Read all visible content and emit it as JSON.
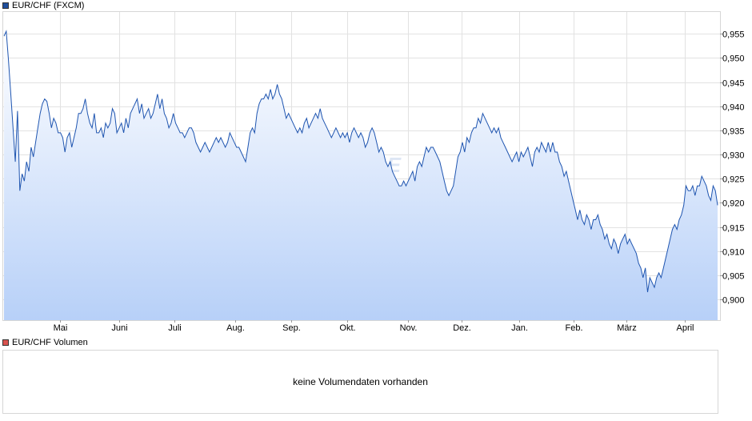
{
  "legend": {
    "price_label": "EUR/CHF (FXCM)",
    "price_color": "#1f4e9c",
    "volume_label": "EUR/CHF Volumen",
    "volume_color": "#d9534f"
  },
  "watermark": "ARIVA.DE",
  "volume_panel": {
    "message": "keine Volumendaten vorhanden"
  },
  "chart_data": {
    "type": "area",
    "title": "",
    "xlabel": "",
    "ylabel": "",
    "y_axis_position": "right",
    "grid": true,
    "ylim": [
      0.8957,
      0.9595
    ],
    "y_ticks": [
      "0,955",
      "0,950",
      "0,945",
      "0,940",
      "0,935",
      "0,930",
      "0,925",
      "0,920",
      "0,915",
      "0,910",
      "0,905",
      "0,900"
    ],
    "y_tick_values": [
      0.955,
      0.95,
      0.945,
      0.94,
      0.935,
      0.93,
      0.925,
      0.92,
      0.915,
      0.91,
      0.905,
      0.9
    ],
    "x_ticks": [
      "Mai",
      "Juni",
      "Juli",
      "Aug.",
      "Sep.",
      "Okt.",
      "Nov.",
      "Dez.",
      "Jan.",
      "Feb.",
      "März",
      "April"
    ],
    "series": [
      {
        "values": [
          0.9545,
          0.9555,
          0.9495,
          0.9425,
          0.9355,
          0.9285,
          0.939,
          0.9225,
          0.926,
          0.9245,
          0.9285,
          0.9265,
          0.9315,
          0.9295,
          0.9325,
          0.9355,
          0.9385,
          0.9405,
          0.9415,
          0.941,
          0.9385,
          0.9355,
          0.9375,
          0.9365,
          0.9345,
          0.9345,
          0.9335,
          0.9305,
          0.9335,
          0.9345,
          0.9315,
          0.9335,
          0.9355,
          0.9385,
          0.9385,
          0.9395,
          0.9415,
          0.9385,
          0.9365,
          0.9355,
          0.9385,
          0.9345,
          0.9345,
          0.9355,
          0.9335,
          0.9365,
          0.9355,
          0.9365,
          0.9395,
          0.9385,
          0.9345,
          0.9355,
          0.9365,
          0.9345,
          0.9375,
          0.9355,
          0.9385,
          0.9395,
          0.9405,
          0.9415,
          0.9385,
          0.9405,
          0.9375,
          0.9385,
          0.9395,
          0.9375,
          0.9385,
          0.9405,
          0.9425,
          0.9395,
          0.9415,
          0.9385,
          0.9375,
          0.9355,
          0.9365,
          0.9385,
          0.9365,
          0.9355,
          0.9345,
          0.9345,
          0.9335,
          0.9345,
          0.9355,
          0.9355,
          0.9345,
          0.9325,
          0.9315,
          0.9305,
          0.9315,
          0.9325,
          0.9315,
          0.9305,
          0.9315,
          0.9325,
          0.9335,
          0.9325,
          0.9335,
          0.9325,
          0.9315,
          0.9325,
          0.9345,
          0.9335,
          0.9325,
          0.9315,
          0.9315,
          0.9305,
          0.9295,
          0.9285,
          0.9315,
          0.9345,
          0.9355,
          0.9345,
          0.9385,
          0.9405,
          0.9415,
          0.9415,
          0.9425,
          0.9415,
          0.9435,
          0.9415,
          0.9425,
          0.9445,
          0.9425,
          0.9415,
          0.9395,
          0.9375,
          0.9385,
          0.9375,
          0.9365,
          0.9355,
          0.9345,
          0.9355,
          0.9345,
          0.9365,
          0.9375,
          0.9355,
          0.9365,
          0.9375,
          0.9385,
          0.9375,
          0.9395,
          0.9375,
          0.9365,
          0.9355,
          0.9345,
          0.9335,
          0.9345,
          0.9355,
          0.9345,
          0.9335,
          0.9345,
          0.9335,
          0.9345,
          0.9325,
          0.9345,
          0.9355,
          0.9345,
          0.9335,
          0.9345,
          0.9335,
          0.9315,
          0.9325,
          0.9345,
          0.9355,
          0.9345,
          0.9325,
          0.9305,
          0.9315,
          0.9305,
          0.9285,
          0.9275,
          0.9285,
          0.9265,
          0.9255,
          0.9245,
          0.9235,
          0.9235,
          0.9245,
          0.9235,
          0.9245,
          0.9255,
          0.9265,
          0.9245,
          0.9275,
          0.9285,
          0.9275,
          0.9295,
          0.9315,
          0.9305,
          0.9315,
          0.9315,
          0.9305,
          0.9295,
          0.9285,
          0.9265,
          0.9245,
          0.9225,
          0.9215,
          0.9225,
          0.9235,
          0.9265,
          0.9295,
          0.9305,
          0.9325,
          0.9305,
          0.9335,
          0.9325,
          0.9345,
          0.9355,
          0.9355,
          0.9375,
          0.9365,
          0.9385,
          0.9375,
          0.9365,
          0.9355,
          0.9345,
          0.9355,
          0.9345,
          0.9355,
          0.9335,
          0.9325,
          0.9315,
          0.9305,
          0.9295,
          0.9285,
          0.9295,
          0.9305,
          0.9285,
          0.9305,
          0.9295,
          0.9305,
          0.9315,
          0.9295,
          0.9275,
          0.9305,
          0.9315,
          0.9305,
          0.9325,
          0.9315,
          0.9305,
          0.9325,
          0.9305,
          0.9325,
          0.9305,
          0.9305,
          0.9285,
          0.9275,
          0.9255,
          0.9265,
          0.9245,
          0.9225,
          0.9205,
          0.9185,
          0.9165,
          0.9185,
          0.9165,
          0.9155,
          0.9175,
          0.9165,
          0.9145,
          0.9165,
          0.9165,
          0.9175,
          0.9155,
          0.9145,
          0.9125,
          0.9135,
          0.9115,
          0.9105,
          0.9125,
          0.9115,
          0.9095,
          0.9115,
          0.9125,
          0.9135,
          0.9115,
          0.9125,
          0.9115,
          0.9105,
          0.9095,
          0.9075,
          0.9065,
          0.9045,
          0.9065,
          0.9015,
          0.9045,
          0.9035,
          0.9025,
          0.9045,
          0.9055,
          0.9045,
          0.9065,
          0.9085,
          0.9105,
          0.9125,
          0.9145,
          0.9155,
          0.9145,
          0.9165,
          0.9175,
          0.9195,
          0.9235,
          0.9225,
          0.9225,
          0.9235,
          0.9215,
          0.9235,
          0.9235,
          0.9255,
          0.9245,
          0.9235,
          0.9215,
          0.9205,
          0.9235,
          0.9225,
          0.9195
        ]
      }
    ]
  }
}
